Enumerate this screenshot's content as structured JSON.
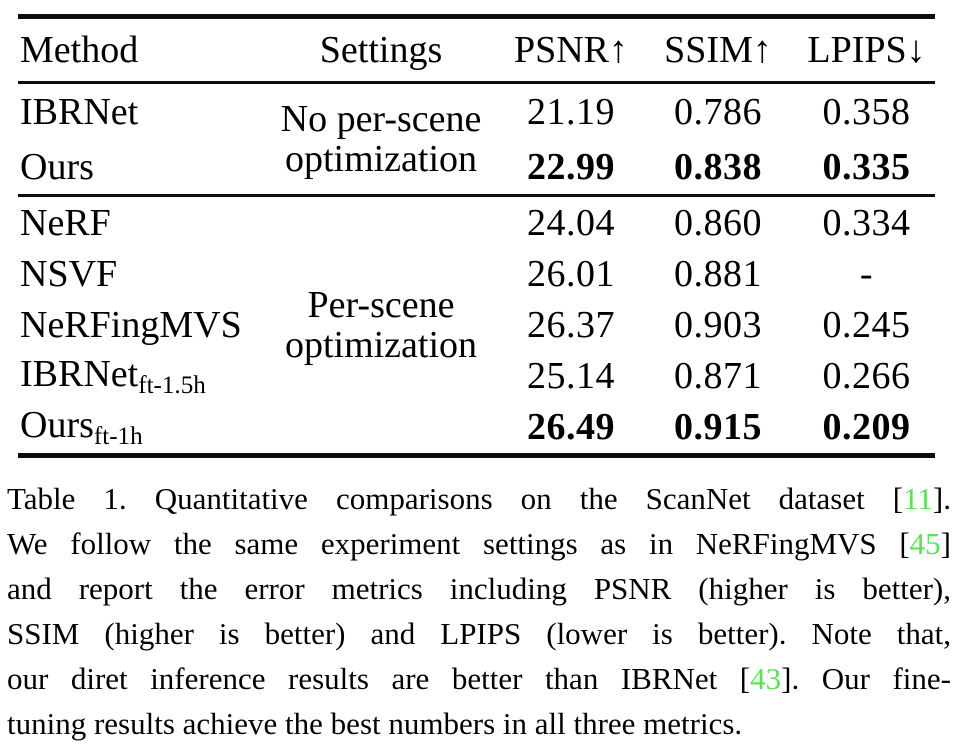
{
  "colors": {
    "citation_green": "#58e258",
    "text": "#000000",
    "rule": "#0d0d0d",
    "background": "#ffffff"
  },
  "table": {
    "headers": [
      "Method",
      "Settings",
      "PSNR↑",
      "SSIM↑",
      "LPIPS↓"
    ],
    "groups": [
      {
        "settings_lines": [
          "No per-scene",
          "optimization"
        ],
        "rows": [
          {
            "method": "IBRNet",
            "subscript": "",
            "values": [
              "21.19",
              "0.786",
              "0.358"
            ],
            "bold_values": false
          },
          {
            "method": "Ours",
            "subscript": "",
            "values": [
              "22.99",
              "0.838",
              "0.335"
            ],
            "bold_values": true
          }
        ]
      },
      {
        "settings_lines": [
          "Per-scene",
          "optimization"
        ],
        "rows": [
          {
            "method": "NeRF",
            "subscript": "",
            "values": [
              "24.04",
              "0.860",
              "0.334"
            ],
            "bold_values": false
          },
          {
            "method": "NSVF",
            "subscript": "",
            "values": [
              "26.01",
              "0.881",
              "-"
            ],
            "bold_values": false
          },
          {
            "method": "NeRFingMVS",
            "subscript": "",
            "values": [
              "26.37",
              "0.903",
              "0.245"
            ],
            "bold_values": false
          },
          {
            "method": "IBRNet",
            "subscript": "ft-1.5h",
            "values": [
              "25.14",
              "0.871",
              "0.266"
            ],
            "bold_values": false
          },
          {
            "method": "Ours",
            "subscript": "ft-1h",
            "values": [
              "26.49",
              "0.915",
              "0.209"
            ],
            "bold_values": true
          }
        ]
      }
    ]
  },
  "caption": {
    "lines": [
      {
        "justify": true,
        "segments": [
          {
            "text": "Table 1.  Quantitative comparisons on the ScanNet dataset ["
          },
          {
            "text": "11",
            "cite": true
          },
          {
            "text": "]."
          }
        ]
      },
      {
        "justify": true,
        "segments": [
          {
            "text": "We follow the same experiment settings as in NeRFingMVS ["
          },
          {
            "text": "45",
            "cite": true
          },
          {
            "text": "]"
          }
        ]
      },
      {
        "justify": true,
        "segments": [
          {
            "text": "and report the error metrics including PSNR (higher is better),"
          }
        ]
      },
      {
        "justify": true,
        "segments": [
          {
            "text": "SSIM (higher is better) and LPIPS (lower is better).  Note that,"
          }
        ]
      },
      {
        "justify": true,
        "segments": [
          {
            "text": "our diret inference results are better than IBRNet ["
          },
          {
            "text": "43",
            "cite": true
          },
          {
            "text": "].  Our fine-"
          }
        ]
      },
      {
        "justify": false,
        "segments": [
          {
            "text": "tuning results achieve the best numbers in all three metrics."
          }
        ]
      }
    ]
  }
}
